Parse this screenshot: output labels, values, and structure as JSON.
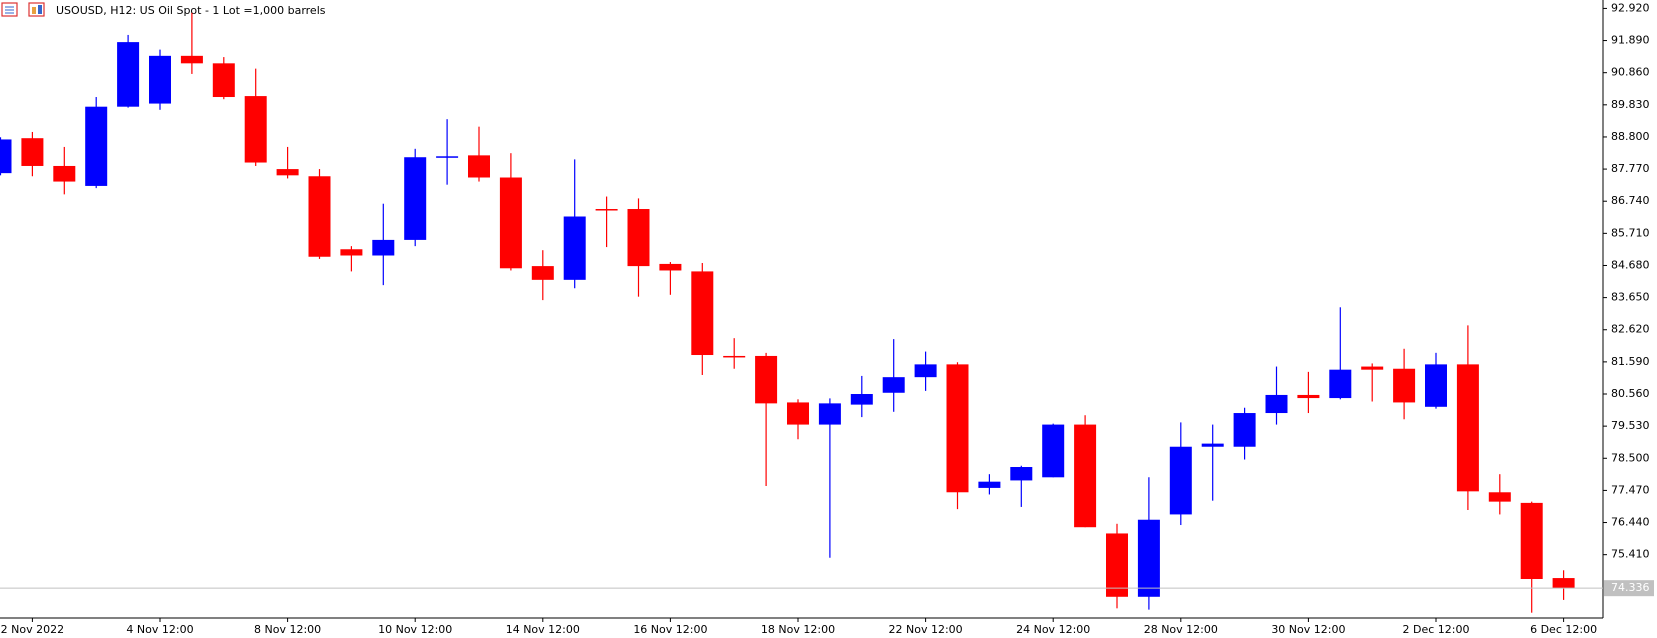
{
  "header": {
    "title": "USOUSD, H12:  US Oil Spot - 1 Lot =1,000 barrels"
  },
  "chart_data": {
    "type": "candlestick",
    "categories": [
      null,
      "2 Nov 2022",
      null,
      null,
      null,
      "4 Nov 12:00",
      null,
      null,
      null,
      "8 Nov 12:00",
      null,
      null,
      null,
      "10 Nov 12:00",
      null,
      null,
      null,
      "14 Nov 12:00",
      null,
      null,
      null,
      "16 Nov 12:00",
      null,
      null,
      null,
      "18 Nov 12:00",
      null,
      null,
      null,
      "22 Nov 12:00",
      null,
      null,
      null,
      "24 Nov 12:00",
      null,
      null,
      null,
      "28 Nov 12:00",
      null,
      null,
      null,
      "30 Nov 12:00",
      null,
      null,
      null,
      "2 Dec 12:00",
      null,
      null,
      null,
      "6 Dec 12:00"
    ],
    "open": [
      87.64,
      88.76,
      87.87,
      87.23,
      89.77,
      89.87,
      91.4,
      91.16,
      90.11,
      87.77,
      87.54,
      85.2,
      85.0,
      85.5,
      88.15,
      88.21,
      87.5,
      84.66,
      84.22,
      86.49,
      86.49,
      84.73,
      84.49,
      81.78,
      81.78,
      80.29,
      79.58,
      80.22,
      80.6,
      81.1,
      81.51,
      77.55,
      77.79,
      77.89,
      79.58,
      76.09,
      74.06,
      76.7,
      78.87,
      78.87,
      79.95,
      80.53,
      80.43,
      81.44,
      81.37,
      80.15,
      81.51,
      77.41,
      77.07,
      74.66
    ],
    "high": [
      88.79,
      88.96,
      88.48,
      90.08,
      92.07,
      91.6,
      92.78,
      91.36,
      90.99,
      88.48,
      87.77,
      85.3,
      86.66,
      88.42,
      89.37,
      89.13,
      88.28,
      85.17,
      88.08,
      86.89,
      86.83,
      84.79,
      84.76,
      82.35,
      81.88,
      80.39,
      80.42,
      81.14,
      82.32,
      81.92,
      81.58,
      77.99,
      78.26,
      79.61,
      79.88,
      76.4,
      77.89,
      79.65,
      79.58,
      80.12,
      81.44,
      81.27,
      83.34,
      81.54,
      82.01,
      81.88,
      82.76,
      77.99,
      77.11,
      74.91
    ],
    "low": [
      87.57,
      87.54,
      86.96,
      87.16,
      89.74,
      89.67,
      90.82,
      90.01,
      87.87,
      87.47,
      84.89,
      84.49,
      84.05,
      85.3,
      87.27,
      87.37,
      84.52,
      83.57,
      83.95,
      85.27,
      83.68,
      83.74,
      81.17,
      81.37,
      77.61,
      79.11,
      75.31,
      79.82,
      79.99,
      80.66,
      76.87,
      77.34,
      76.94,
      77.89,
      76.29,
      73.69,
      73.65,
      76.36,
      77.14,
      78.46,
      79.58,
      79.95,
      80.39,
      80.32,
      79.75,
      80.09,
      76.84,
      76.7,
      73.55,
      73.96
    ],
    "close": [
      88.72,
      87.87,
      87.37,
      89.77,
      91.84,
      91.4,
      91.16,
      90.08,
      87.98,
      87.57,
      84.96,
      85.0,
      85.5,
      88.15,
      88.18,
      87.5,
      84.59,
      84.22,
      86.25,
      86.45,
      84.66,
      84.52,
      81.81,
      81.75,
      80.26,
      79.58,
      80.26,
      80.56,
      81.1,
      81.51,
      77.41,
      77.75,
      78.22,
      79.58,
      76.29,
      74.06,
      76.53,
      78.87,
      78.97,
      79.95,
      80.53,
      80.43,
      81.34,
      81.34,
      80.29,
      81.51,
      77.44,
      77.11,
      74.63,
      74.336
    ],
    "up_color": "#0000ff",
    "down_color": "#ff0000",
    "last_price": 74.336,
    "ylim": [
      73.38,
      93.19
    ],
    "yticks": [
      {
        "value": 92.92,
        "label": "92.920"
      },
      {
        "value": 91.89,
        "label": "91.890"
      },
      {
        "value": 90.86,
        "label": "90.860"
      },
      {
        "value": 89.83,
        "label": "89.830"
      },
      {
        "value": 88.8,
        "label": "88.800"
      },
      {
        "value": 87.77,
        "label": "87.770"
      },
      {
        "value": 86.74,
        "label": "86.740"
      },
      {
        "value": 85.71,
        "label": "85.710"
      },
      {
        "value": 84.68,
        "label": "84.680"
      },
      {
        "value": 83.65,
        "label": "83.650"
      },
      {
        "value": 82.62,
        "label": "82.620"
      },
      {
        "value": 81.59,
        "label": "81.590"
      },
      {
        "value": 80.56,
        "label": "80.560"
      },
      {
        "value": 79.53,
        "label": "79.530"
      },
      {
        "value": 78.5,
        "label": "78.500"
      },
      {
        "value": 77.47,
        "label": "77.470"
      },
      {
        "value": 76.44,
        "label": "76.440"
      },
      {
        "value": 75.41,
        "label": "75.410"
      }
    ]
  }
}
